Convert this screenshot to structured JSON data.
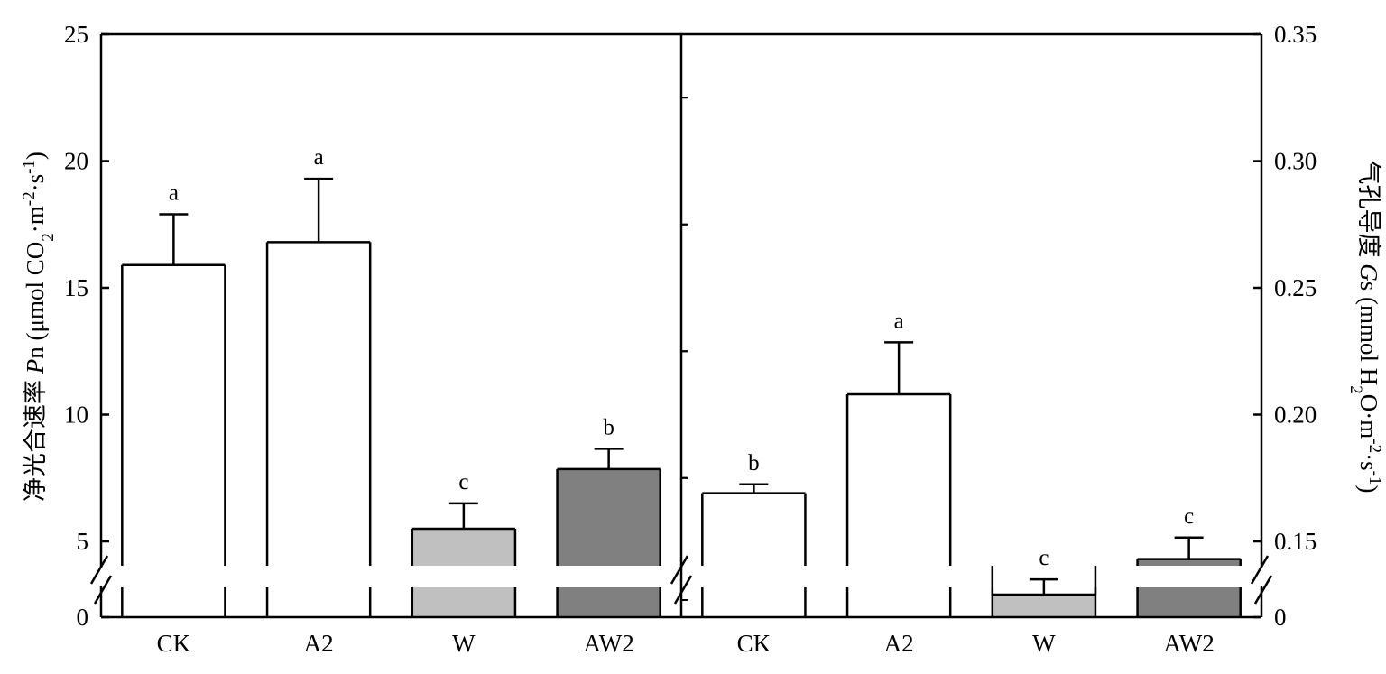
{
  "chart_data": [
    {
      "type": "bar",
      "categories": [
        "CK",
        "A2",
        "W",
        "AW2"
      ],
      "values": [
        15.9,
        16.8,
        5.5,
        7.85
      ],
      "errors": [
        2.0,
        2.5,
        1.0,
        0.8
      ],
      "significance": [
        "a",
        "a",
        "c",
        "b"
      ],
      "bar_colors": [
        "#ffffff",
        "#ffffff",
        "#c0c0c0",
        "#808080"
      ],
      "ylim": [
        0,
        25
      ],
      "broken_axis": true,
      "yticks": [
        0,
        5,
        10,
        15,
        20,
        25
      ],
      "ylabel": {
        "main": "净光合速率 ",
        "italic": "P",
        "roman": "n (μmol CO",
        "sub": "2",
        "mid": "·m",
        "sup1": "-2",
        "mid2": "·s",
        "sup2": "-1",
        "end": ")"
      }
    },
    {
      "type": "bar",
      "categories": [
        "CK",
        "A2",
        "W",
        "AW2"
      ],
      "values": [
        0.169,
        0.208,
        0.129,
        0.143
      ],
      "errors": [
        0.0035,
        0.0205,
        0.006,
        0.0085
      ],
      "significance": [
        "b",
        "a",
        "c",
        "c"
      ],
      "bar_colors": [
        "#ffffff",
        "#ffffff",
        "#c0c0c0",
        "#808080"
      ],
      "ylim": [
        0,
        0.35
      ],
      "broken_axis": true,
      "yticks": [
        0,
        0.15,
        0.2,
        0.25,
        0.3,
        0.35
      ],
      "ytick_labels": [
        "0",
        "0.15",
        "0.20",
        "0.25",
        "0.30",
        "0.35"
      ],
      "ylabel": {
        "main": "气孔导度 ",
        "italic": "G",
        "roman": "s (mmol H",
        "sub": "2",
        "mid": "O·m",
        "sup1": "-2",
        "mid2": "·s",
        "sup2": "-1",
        "end": ")"
      }
    }
  ]
}
